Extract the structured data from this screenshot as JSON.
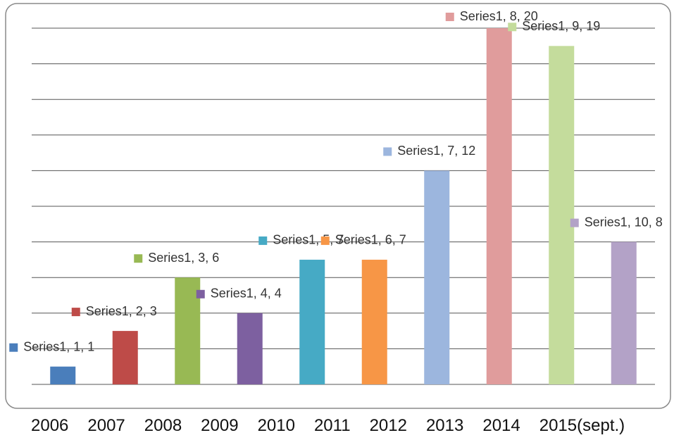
{
  "chart_data": {
    "type": "bar",
    "categories": [
      "2006",
      "2007",
      "2008",
      "2009",
      "2010",
      "2011",
      "2012",
      "2013",
      "2014",
      "2015(sept.)"
    ],
    "values": [
      1,
      3,
      6,
      4,
      7,
      7,
      12,
      20,
      19,
      8
    ],
    "value_labels": [
      "Series1, 1, 1",
      "Series1, 2, 3",
      "Series1, 3, 6",
      "Series1, 4, 4",
      "Series1, 5, 7",
      "Series1, 6, 7",
      "Series1, 7, 12",
      "Series1, 8, 20",
      "Series1, 9, 19",
      "Series1, 10, 8"
    ],
    "colors": [
      "#4a7ebb",
      "#be4b48",
      "#98b954",
      "#7d60a0",
      "#46aac5",
      "#f79646",
      "#9cb6de",
      "#e09c9c",
      "#c4dc9c",
      "#b3a2c7"
    ],
    "ylim": [
      0,
      20
    ],
    "yticks": [
      0,
      2,
      4,
      6,
      8,
      10,
      12,
      14,
      16,
      18,
      20
    ],
    "grid": true
  }
}
